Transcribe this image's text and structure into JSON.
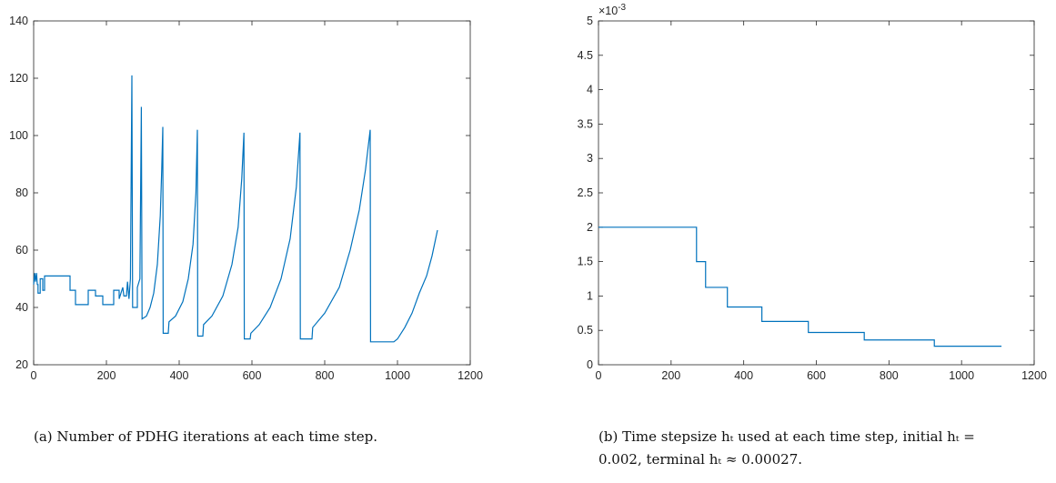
{
  "chart_data": [
    {
      "type": "line",
      "caption": "(a) Number of PDHG iterations at each time step.",
      "xlim": [
        0,
        1200
      ],
      "xticks": [
        0,
        200,
        400,
        600,
        800,
        1000,
        1200
      ],
      "ylim": [
        20,
        140
      ],
      "yticks": [
        20,
        40,
        60,
        80,
        100,
        120,
        140
      ],
      "x": [
        0,
        3,
        5,
        8,
        10,
        12,
        12,
        18,
        18,
        25,
        25,
        30,
        30,
        100,
        100,
        115,
        115,
        150,
        150,
        170,
        170,
        190,
        190,
        220,
        220,
        235,
        235,
        245,
        248,
        255,
        258,
        262,
        266,
        270,
        272,
        285,
        285,
        292,
        296,
        298,
        310,
        320,
        330,
        340,
        348,
        352,
        355,
        356,
        370,
        372,
        390,
        410,
        425,
        438,
        446,
        450,
        451,
        465,
        467,
        490,
        520,
        545,
        562,
        572,
        578,
        579,
        595,
        597,
        620,
        650,
        680,
        705,
        722,
        732,
        733,
        765,
        767,
        800,
        840,
        870,
        895,
        912,
        925,
        926,
        990,
        1000,
        1020,
        1040,
        1060,
        1080,
        1095,
        1110
      ],
      "series": [
        {
          "color": "#0072bd",
          "values": [
            48,
            52,
            49,
            52,
            48,
            48,
            45,
            45,
            50,
            50,
            46,
            46,
            51,
            51,
            46,
            46,
            41,
            41,
            46,
            46,
            44,
            44,
            41,
            41,
            46,
            46,
            43,
            47,
            44,
            44,
            49,
            43,
            50,
            121,
            40,
            40,
            47,
            50,
            110,
            36,
            37,
            40,
            45,
            55,
            72,
            88,
            103,
            31,
            31,
            35,
            37,
            42,
            50,
            62,
            80,
            102,
            30,
            30,
            34,
            37,
            44,
            55,
            68,
            85,
            101,
            29,
            29,
            31,
            34,
            40,
            50,
            64,
            82,
            101,
            29,
            29,
            33,
            38,
            47,
            60,
            74,
            88,
            102,
            28,
            28,
            29,
            33,
            38,
            45,
            51,
            58,
            67
          ]
        }
      ]
    },
    {
      "type": "line",
      "caption": "(b) Time stepsize hₜ used at each time step, initial hₜ = 0.002, terminal hₜ ≈ 0.00027.",
      "y_multiplier_base": "×10",
      "y_multiplier_exponent": "-3",
      "xlim": [
        0,
        1200
      ],
      "xticks": [
        0,
        200,
        400,
        600,
        800,
        1000,
        1200
      ],
      "ylim": [
        0,
        5
      ],
      "yticks": [
        0,
        0.5,
        1,
        1.5,
        2,
        2.5,
        3,
        3.5,
        4,
        4.5,
        5
      ],
      "x": [
        0,
        270,
        270,
        295,
        295,
        355,
        355,
        450,
        450,
        578,
        578,
        732,
        732,
        925,
        925,
        1110
      ],
      "series": [
        {
          "color": "#0072bd",
          "values": [
            2,
            2,
            1.5,
            1.5,
            1.125,
            1.125,
            0.84,
            0.84,
            0.63,
            0.63,
            0.47,
            0.47,
            0.36,
            0.36,
            0.27,
            0.27
          ]
        }
      ]
    }
  ]
}
